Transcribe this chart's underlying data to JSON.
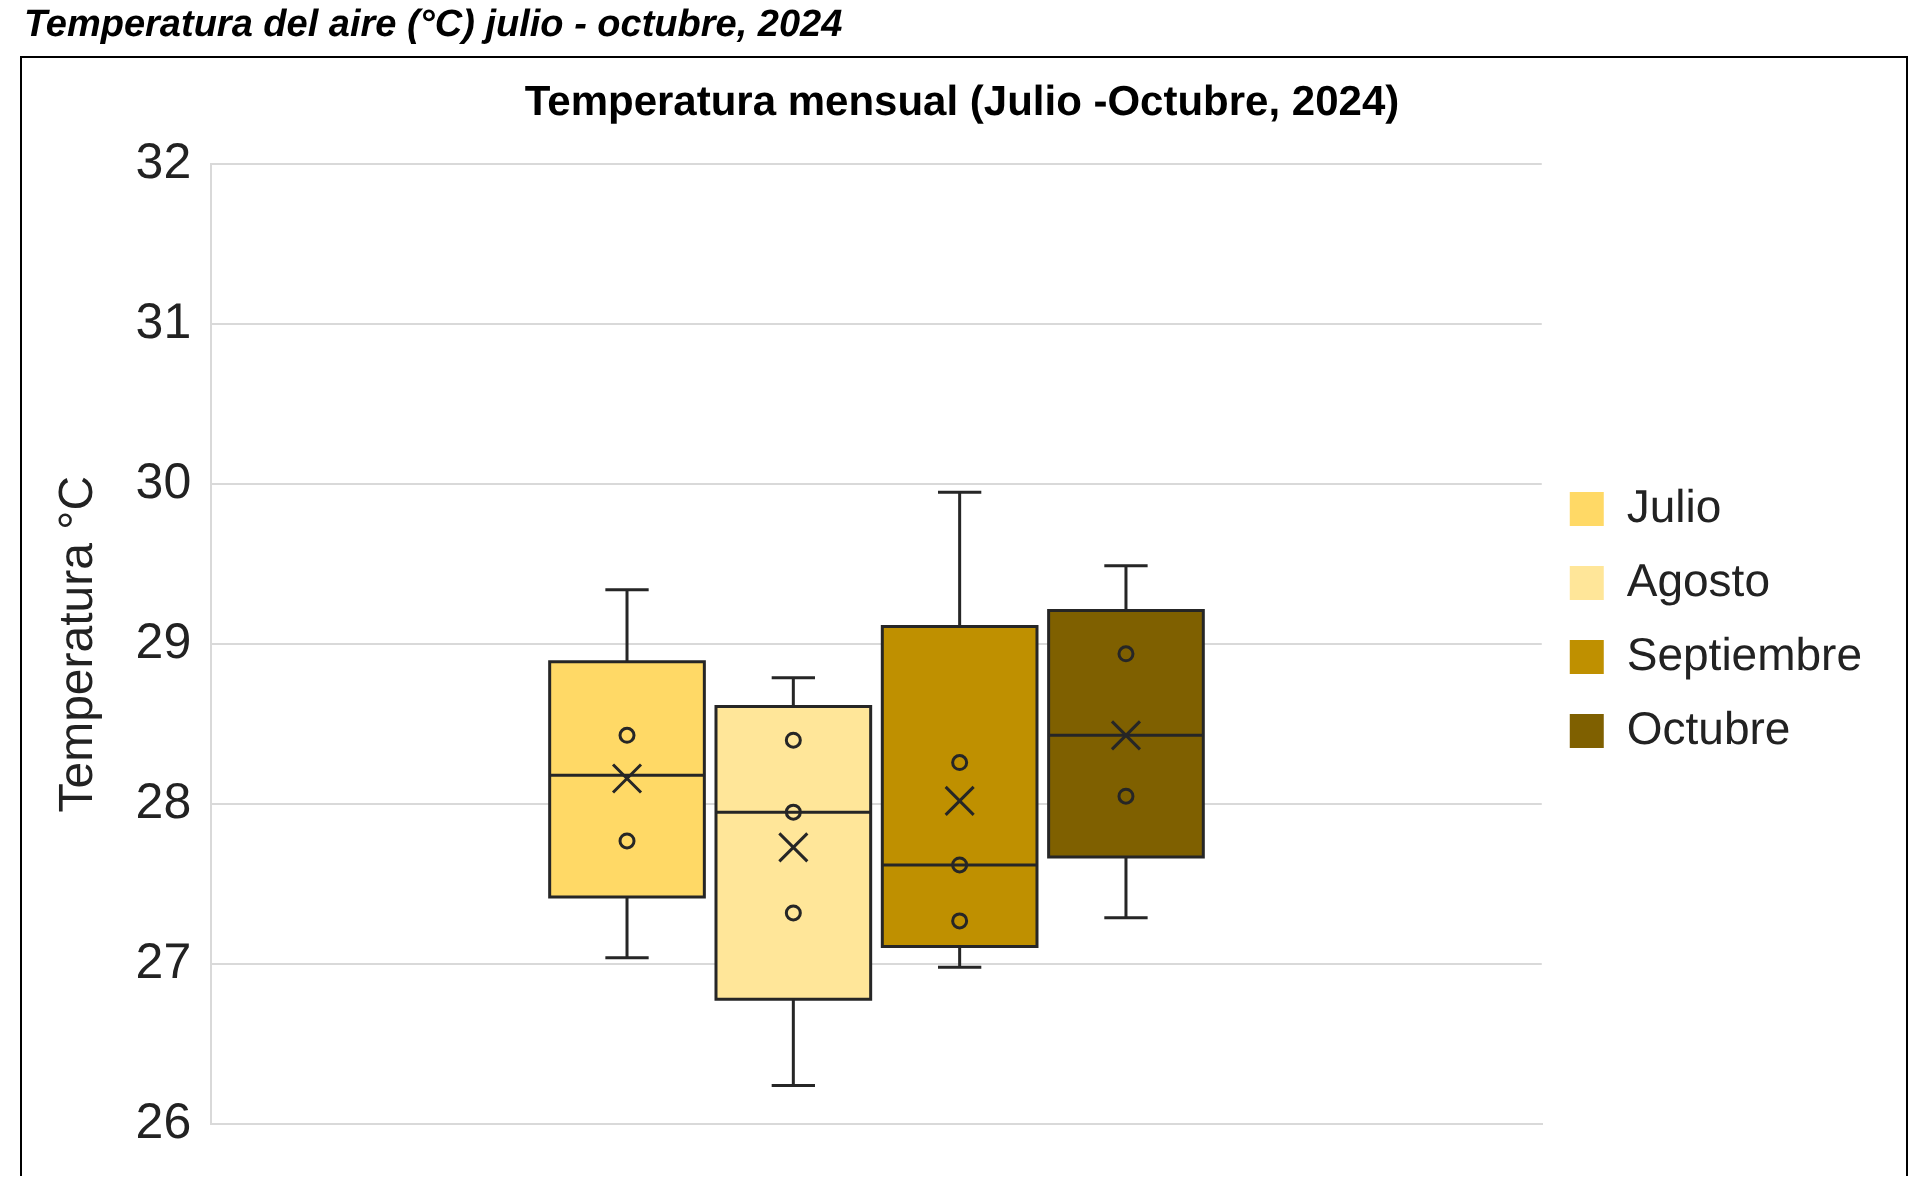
{
  "chart_data": {
    "type": "box",
    "title": "Temperatura mensual (Julio -Octubre, 2024)",
    "annotations": [
      "Temperatura del aire (°C) julio - octubre, 2024"
    ],
    "ylabel": "Temperatura °C",
    "categories": [
      null
    ],
    "series": [
      {
        "name": "Julio",
        "color": "#ffd966",
        "boxes": [
          {
            "low": 27.04,
            "q1": 27.42,
            "median": 28.18,
            "q3": 28.89,
            "high": 29.34,
            "mean": 28.16,
            "outliers": [
              28.43,
              27.77
            ]
          }
        ]
      },
      {
        "name": "Agosto",
        "color": "#ffe699",
        "boxes": [
          {
            "low": 26.24,
            "q1": 26.78,
            "median": 27.95,
            "q3": 28.61,
            "high": 28.79,
            "mean": 27.73,
            "outliers": [
              28.4,
              27.95,
              27.32
            ]
          }
        ]
      },
      {
        "name": "Septiembre",
        "color": "#bf9000",
        "boxes": [
          {
            "low": 26.98,
            "q1": 27.11,
            "median": 27.62,
            "q3": 29.11,
            "high": 29.95,
            "mean": 28.02,
            "outliers": [
              28.26,
              27.62,
              27.27
            ]
          }
        ]
      },
      {
        "name": "Octubre",
        "color": "#7f6000",
        "boxes": [
          {
            "low": 27.29,
            "q1": 27.67,
            "median": 28.43,
            "q3": 29.21,
            "high": 29.49,
            "mean": 28.43,
            "outliers": [
              28.94,
              28.05
            ]
          }
        ]
      }
    ],
    "ylim": [
      26,
      32
    ],
    "yticks": [
      26,
      27,
      28,
      29,
      30,
      31,
      32
    ],
    "grid": "y",
    "legend": "right",
    "marker": "circle"
  }
}
